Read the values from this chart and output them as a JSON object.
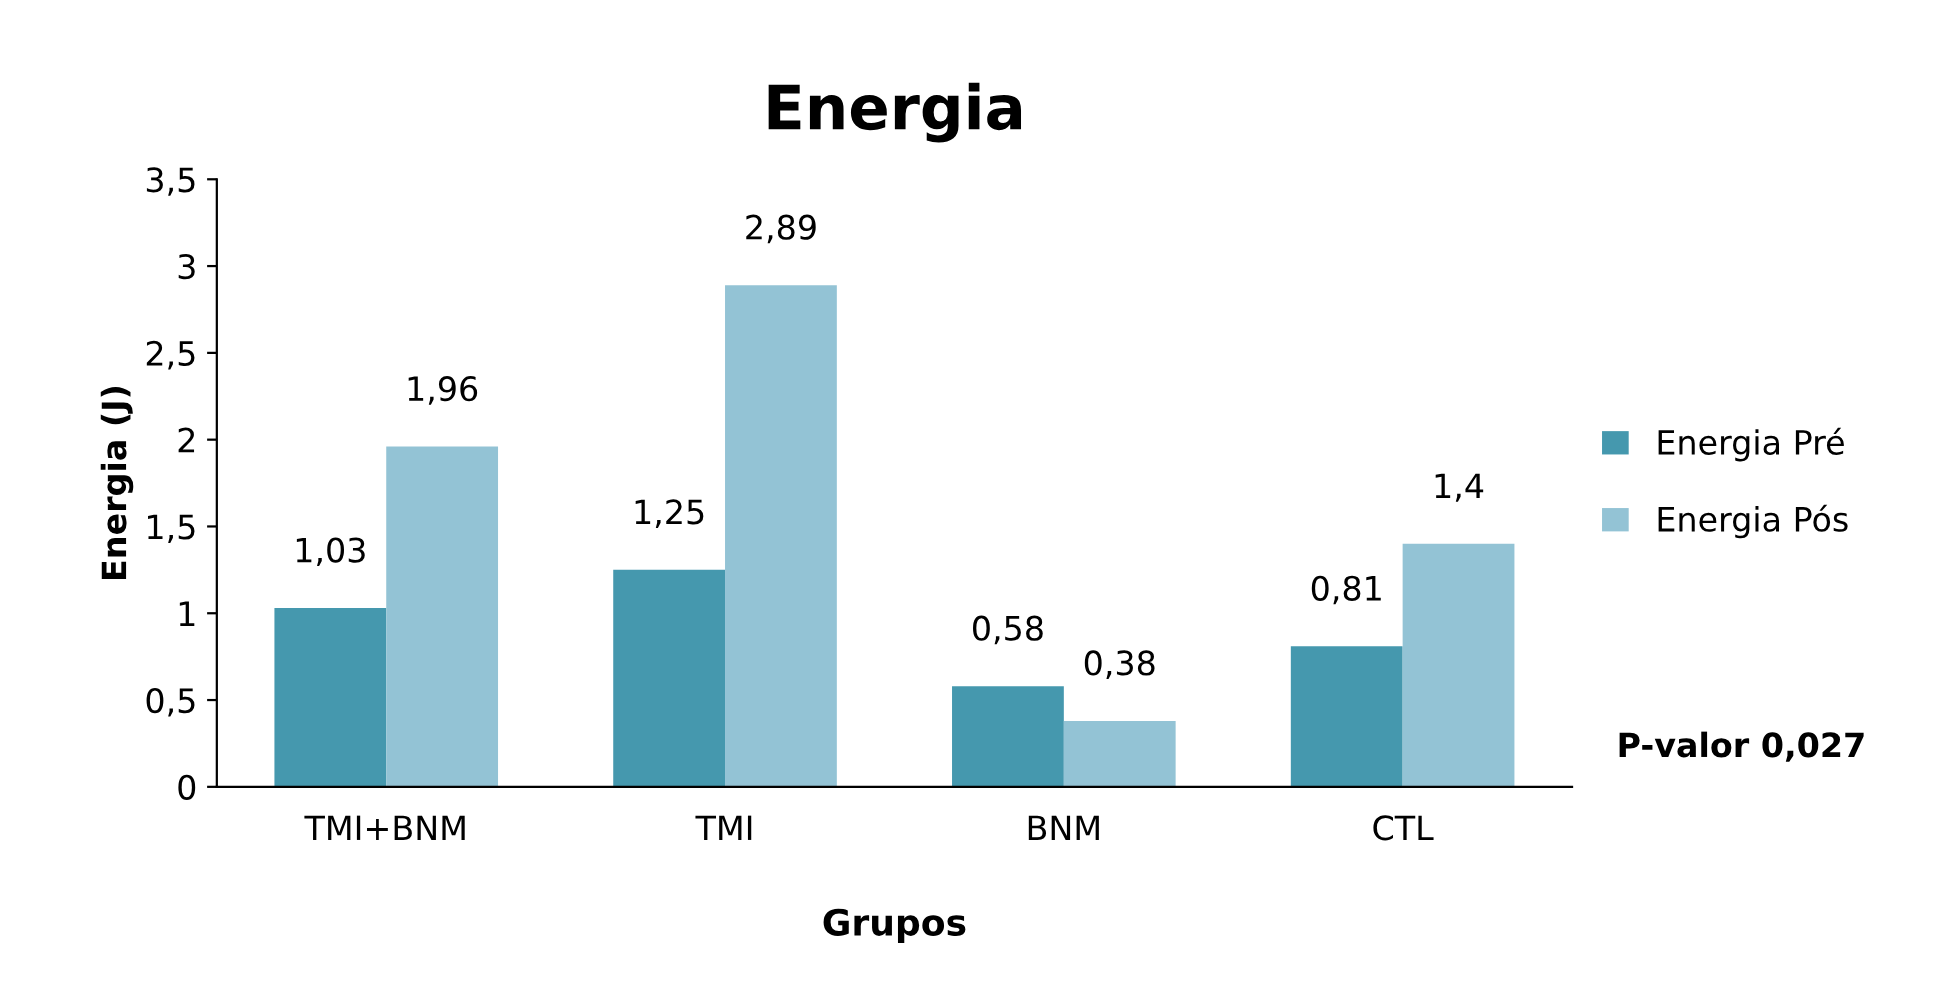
{
  "chart_data": {
    "type": "bar",
    "title": "Energia",
    "xlabel": "Grupos",
    "ylabel": "Energia (J)",
    "categories": [
      "TMI+BNM",
      "TMI",
      "BNM",
      "CTL"
    ],
    "series": [
      {
        "name": "Energia Pré",
        "color": "#4598ae",
        "values": [
          1.03,
          1.25,
          0.58,
          0.81
        ],
        "value_labels": [
          "1,03",
          "1,25",
          "0,58",
          "0,81"
        ]
      },
      {
        "name": "Energia Pós",
        "color": "#93c3d5",
        "values": [
          1.96,
          2.89,
          0.38,
          1.4
        ],
        "value_labels": [
          "1,96",
          "2,89",
          "0,38",
          "1,4"
        ]
      }
    ],
    "ylim": [
      0,
      3.5
    ],
    "yticks": [
      0,
      {
        "value": 0.5,
        "label": "0,5"
      },
      1,
      {
        "value": 1.5,
        "label": "1,5"
      },
      2,
      {
        "value": 2.5,
        "label": "2,5"
      },
      3,
      {
        "value": 3.5,
        "label": "3,5"
      }
    ],
    "legend": "right",
    "grid": false,
    "annotations": [
      "P-valor 0,027"
    ]
  }
}
